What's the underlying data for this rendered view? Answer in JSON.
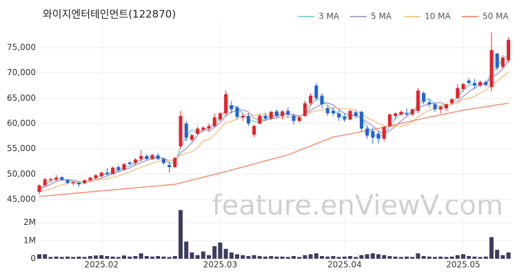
{
  "chart_data": {
    "type": "candlestick",
    "title": "와이지엔터테인먼트(122870)",
    "watermark": "feature.enViewV.com",
    "categories": [
      null,
      null,
      null,
      null,
      null,
      null,
      null,
      null,
      null,
      null,
      null,
      "2025.02",
      null,
      null,
      null,
      null,
      null,
      null,
      null,
      null,
      null,
      null,
      null,
      null,
      null,
      null,
      null,
      null,
      null,
      null,
      null,
      null,
      "2025.03",
      null,
      null,
      null,
      null,
      null,
      null,
      null,
      null,
      null,
      null,
      null,
      null,
      null,
      null,
      null,
      null,
      null,
      null,
      null,
      null,
      null,
      "2025.04",
      null,
      null,
      null,
      null,
      null,
      null,
      null,
      null,
      null,
      null,
      null,
      null,
      null,
      null,
      null,
      null,
      null,
      null,
      null,
      null,
      "2025.05",
      null,
      null,
      null,
      null,
      null,
      null,
      null,
      null
    ],
    "ohlc": [
      [
        46500,
        48000,
        46000,
        47800
      ],
      [
        47800,
        49300,
        47500,
        49000
      ],
      [
        48800,
        49300,
        48500,
        49000
      ],
      [
        48900,
        49800,
        48600,
        49300
      ],
      [
        49400,
        49600,
        48800,
        48900
      ],
      [
        48900,
        49000,
        48000,
        48300
      ],
      [
        48200,
        48600,
        47800,
        48400
      ],
      [
        48300,
        48500,
        47500,
        48000
      ],
      [
        48200,
        49000,
        48000,
        48800
      ],
      [
        48800,
        49500,
        48600,
        49300
      ],
      [
        49200,
        50000,
        48900,
        49800
      ],
      [
        49600,
        50500,
        49300,
        50300
      ],
      [
        50300,
        51200,
        49800,
        50000
      ],
      [
        50000,
        51500,
        50000,
        51300
      ],
      [
        51400,
        51800,
        50500,
        50800
      ],
      [
        50900,
        52200,
        50700,
        52000
      ],
      [
        52300,
        52600,
        51800,
        52000
      ],
      [
        52200,
        53200,
        51800,
        52900
      ],
      [
        53000,
        54700,
        52500,
        53600
      ],
      [
        53600,
        54000,
        52800,
        53000
      ],
      [
        53000,
        54000,
        52800,
        53800
      ],
      [
        53700,
        54200,
        52800,
        53000
      ],
      [
        53000,
        53300,
        51800,
        52200
      ],
      [
        51800,
        52500,
        50300,
        51400
      ],
      [
        51400,
        53400,
        51200,
        53200
      ],
      [
        55500,
        62500,
        55000,
        61500
      ],
      [
        60000,
        60500,
        56500,
        57200
      ],
      [
        56800,
        58000,
        56500,
        57700
      ],
      [
        58000,
        59400,
        57800,
        59000
      ],
      [
        58800,
        59500,
        58300,
        59200
      ],
      [
        59000,
        60000,
        58500,
        59500
      ],
      [
        59500,
        62000,
        59200,
        61200
      ],
      [
        60800,
        62300,
        60500,
        62000
      ],
      [
        62000,
        66500,
        61500,
        65800
      ],
      [
        63600,
        64500,
        62000,
        62800
      ],
      [
        63200,
        63500,
        60800,
        61300
      ],
      [
        61200,
        62000,
        60500,
        61500
      ],
      [
        61500,
        62000,
        59500,
        60000
      ],
      [
        57800,
        59800,
        57300,
        59500
      ],
      [
        60000,
        62000,
        59800,
        61500
      ],
      [
        61500,
        62200,
        60500,
        61000
      ],
      [
        61000,
        62500,
        60800,
        62300
      ],
      [
        62400,
        62800,
        61000,
        61500
      ],
      [
        61500,
        62700,
        60800,
        62400
      ],
      [
        62500,
        63200,
        61200,
        61800
      ],
      [
        61500,
        62000,
        59800,
        60500
      ],
      [
        60500,
        61500,
        60200,
        61200
      ],
      [
        61500,
        64500,
        61300,
        64000
      ],
      [
        64000,
        66000,
        63500,
        65500
      ],
      [
        67500,
        68000,
        64500,
        65000
      ],
      [
        65500,
        66000,
        63000,
        63800
      ],
      [
        63000,
        63500,
        61500,
        62000
      ],
      [
        62500,
        63200,
        61500,
        62000
      ],
      [
        62000,
        62700,
        60500,
        61200
      ],
      [
        61300,
        62000,
        60300,
        60800
      ],
      [
        60800,
        62700,
        60600,
        62500
      ],
      [
        62200,
        62500,
        61000,
        61500
      ],
      [
        62300,
        62600,
        58500,
        59000
      ],
      [
        59000,
        59500,
        57000,
        57600
      ],
      [
        58500,
        59200,
        56000,
        57200
      ],
      [
        58000,
        58500,
        56000,
        57000
      ],
      [
        57000,
        59500,
        56500,
        59300
      ],
      [
        59500,
        62000,
        59300,
        61800
      ],
      [
        61500,
        62200,
        60800,
        62000
      ],
      [
        61800,
        62600,
        61500,
        62300
      ],
      [
        62000,
        63000,
        61500,
        61800
      ],
      [
        61800,
        63000,
        61500,
        62800
      ],
      [
        62500,
        67000,
        62000,
        66500
      ],
      [
        66000,
        66300,
        63800,
        64300
      ],
      [
        64200,
        64800,
        63200,
        63800
      ],
      [
        63800,
        64100,
        62300,
        62800
      ],
      [
        62800,
        63500,
        62000,
        63300
      ],
      [
        63000,
        64000,
        62500,
        63800
      ],
      [
        64000,
        65000,
        63800,
        64800
      ],
      [
        65000,
        67800,
        64800,
        67000
      ],
      [
        66800,
        68000,
        66300,
        67800
      ],
      [
        68500,
        69000,
        67800,
        68000
      ],
      [
        68000,
        68800,
        66800,
        67500
      ],
      [
        67500,
        68500,
        67200,
        68200
      ],
      [
        68200,
        68500,
        67300,
        67600
      ],
      [
        67200,
        78000,
        66300,
        74500
      ],
      [
        73800,
        74000,
        70500,
        71000
      ],
      [
        71200,
        73500,
        70800,
        73000
      ],
      [
        72500,
        77000,
        72000,
        76500
      ]
    ],
    "up_color": "#e8202a",
    "down_color": "#1f62d8",
    "series": [
      {
        "name": "3 MA",
        "color": "#86d3d3",
        "values": [
          47000,
          48000,
          48600,
          49100,
          49070,
          48830,
          48530,
          48230,
          48400,
          48700,
          49300,
          49800,
          50030,
          50530,
          50700,
          51370,
          51600,
          52300,
          52830,
          53170,
          53470,
          53270,
          53000,
          52200,
          52270,
          55370,
          57300,
          58800,
          57970,
          58630,
          59230,
          59970,
          60900,
          63000,
          63530,
          63300,
          61870,
          60930,
          60330,
          60330,
          60670,
          61600,
          61600,
          62070,
          61900,
          61570,
          61170,
          61900,
          63570,
          64830,
          64770,
          63600,
          62600,
          61730,
          61330,
          61500,
          61600,
          61000,
          59370,
          57930,
          57270,
          57830,
          59370,
          61030,
          62030,
          62030,
          62300,
          63700,
          64530,
          64870,
          63630,
          63300,
          63300,
          63970,
          65200,
          66530,
          67600,
          67770,
          67900,
          67770,
          70100,
          71030,
          72830,
          73500
        ]
      },
      {
        "name": "5 MA",
        "color": "#b7a0cc",
        "values": [
          47000,
          47500,
          48000,
          48600,
          48800,
          48900,
          48780,
          48580,
          48480,
          48560,
          48860,
          49240,
          49640,
          50140,
          50440,
          50880,
          51220,
          51800,
          52260,
          52700,
          53060,
          53260,
          53120,
          52680,
          52720,
          54260,
          55100,
          56200,
          57720,
          58920,
          58520,
          59320,
          60180,
          61540,
          62260,
          62620,
          62680,
          62280,
          61020,
          60760,
          60700,
          60860,
          61160,
          61740,
          61800,
          61700,
          61480,
          61980,
          62600,
          63240,
          63900,
          64060,
          63660,
          62800,
          61960,
          61700,
          61600,
          61000,
          60280,
          59560,
          58460,
          58020,
          58580,
          59460,
          60480,
          61440,
          62140,
          63080,
          63540,
          63840,
          64040,
          64140,
          63600,
          63700,
          64340,
          65340,
          66280,
          67020,
          67700,
          67820,
          69160,
          69760,
          70860,
          72520
        ]
      },
      {
        "name": "10 MA",
        "color": "#f3c892",
        "values": [
          46500,
          46800,
          47100,
          47500,
          47900,
          48200,
          48400,
          48500,
          48600,
          48730,
          48820,
          48910,
          49060,
          49350,
          49650,
          50060,
          50430,
          50970,
          51350,
          51790,
          52140,
          52530,
          52690,
          52690,
          52890,
          53760,
          54110,
          54440,
          55220,
          56590,
          56810,
          57760,
          58950,
          60230,
          60390,
          60970,
          61430,
          61910,
          61640,
          61690,
          61690,
          61570,
          61090,
          61250,
          61250,
          61280,
          61320,
          61860,
          62200,
          62470,
          62690,
          63020,
          63130,
          63020,
          62930,
          62880,
          62630,
          61900,
          61120,
          60630,
          60030,
          59510,
          59430,
          59510,
          59470,
          59730,
          60360,
          61270,
          62010,
          62640,
          63090,
          63610,
          63570,
          63770,
          64190,
          64740,
          64940,
          65360,
          66020,
          66580,
          67720,
          68390,
          69280,
          70170
        ]
      },
      {
        "name": "50 MA",
        "color": "#f2937c",
        "values": [
          45600,
          45700,
          45800,
          45900,
          46000,
          46100,
          46200,
          46300,
          46400,
          46500,
          46600,
          46700,
          46800,
          46900,
          47000,
          47100,
          47200,
          47300,
          47400,
          47500,
          47600,
          47700,
          47800,
          47900,
          48000,
          48280,
          48560,
          48840,
          49120,
          49400,
          49680,
          49960,
          50240,
          50520,
          50820,
          51120,
          51420,
          51720,
          52020,
          52320,
          52620,
          52920,
          53220,
          53520,
          53820,
          54260,
          54700,
          55140,
          55580,
          56020,
          56460,
          56900,
          57340,
          57550,
          57760,
          57970,
          58180,
          58390,
          58600,
          58810,
          59020,
          59270,
          59520,
          59770,
          60020,
          60270,
          60520,
          60770,
          61020,
          61250,
          61480,
          61710,
          61940,
          62170,
          62400,
          62630,
          62800,
          62980,
          63150,
          63330,
          63500,
          63680,
          63850,
          64030
        ]
      }
    ],
    "ylim": [
      44200,
      80300
    ],
    "yticks": [
      {
        "value": 45000,
        "label": "45,000"
      },
      {
        "value": 50000,
        "label": "50,000"
      },
      {
        "value": 55000,
        "label": "55,000"
      },
      {
        "value": 60000,
        "label": "60,000"
      },
      {
        "value": 65000,
        "label": "65,000"
      },
      {
        "value": 70000,
        "label": "70,000"
      },
      {
        "value": 75000,
        "label": "75,000"
      }
    ],
    "grid": true,
    "volume": {
      "color": "#3d3d5e",
      "values": [
        250000,
        250000,
        100000,
        120000,
        100000,
        120000,
        100000,
        120000,
        100000,
        150000,
        180000,
        200000,
        150000,
        120000,
        100000,
        180000,
        120000,
        150000,
        300000,
        150000,
        120000,
        150000,
        120000,
        100000,
        150000,
        2700000,
        950000,
        350000,
        200000,
        400000,
        200000,
        700000,
        900000,
        550000,
        350000,
        250000,
        200000,
        150000,
        200000,
        150000,
        120000,
        150000,
        120000,
        120000,
        100000,
        150000,
        100000,
        200000,
        250000,
        300000,
        150000,
        120000,
        150000,
        100000,
        120000,
        150000,
        100000,
        200000,
        250000,
        300000,
        250000,
        200000,
        150000,
        120000,
        100000,
        120000,
        100000,
        300000,
        150000,
        120000,
        100000,
        120000,
        100000,
        120000,
        200000,
        250000,
        150000,
        120000,
        100000,
        120000,
        1200000,
        500000,
        200000,
        350000
      ],
      "ylim": [
        0,
        2870000
      ],
      "yticks": [
        0,
        {
          "value": 1000000,
          "label": "1M"
        },
        {
          "value": 2000000,
          "label": "2M"
        }
      ]
    }
  }
}
